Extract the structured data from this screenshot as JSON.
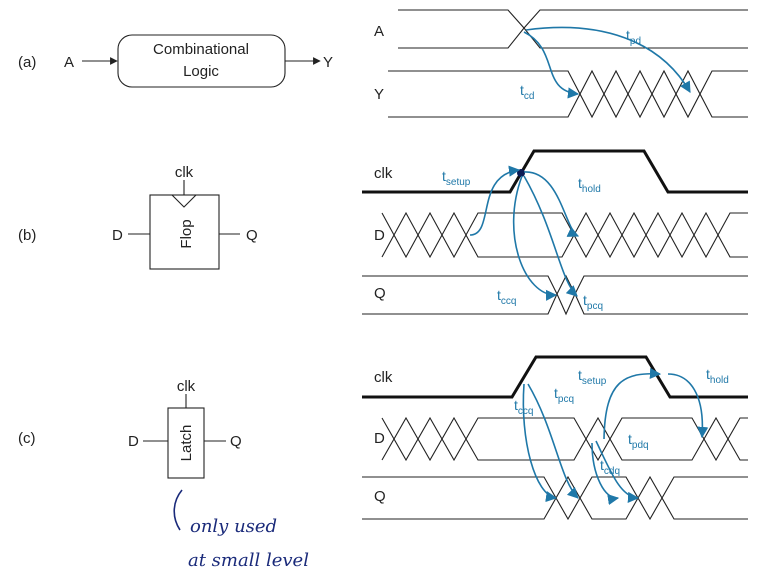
{
  "rows": {
    "a": {
      "label": "(a)",
      "block": {
        "line1": "Combinational",
        "line2": "Logic",
        "input": "A",
        "output": "Y"
      },
      "signals": [
        "A",
        "Y"
      ],
      "timing": [
        {
          "base": "t",
          "sub": "pd"
        },
        {
          "base": "t",
          "sub": "cd"
        }
      ]
    },
    "b": {
      "label": "(b)",
      "block": {
        "name": "Flop",
        "clock": "clk",
        "input": "D",
        "output": "Q"
      },
      "signals": [
        "clk",
        "D",
        "Q"
      ],
      "timing": [
        {
          "base": "t",
          "sub": "setup"
        },
        {
          "base": "t",
          "sub": "hold"
        },
        {
          "base": "t",
          "sub": "ccq"
        },
        {
          "base": "t",
          "sub": "pcq"
        }
      ]
    },
    "c": {
      "label": "(c)",
      "block": {
        "name": "Latch",
        "clock": "clk",
        "input": "D",
        "output": "Q"
      },
      "signals": [
        "clk",
        "D",
        "Q"
      ],
      "timing": [
        {
          "base": "t",
          "sub": "ccq"
        },
        {
          "base": "t",
          "sub": "pcq"
        },
        {
          "base": "t",
          "sub": "setup"
        },
        {
          "base": "t",
          "sub": "hold"
        },
        {
          "base": "t",
          "sub": "pdq"
        },
        {
          "base": "t",
          "sub": "cdq"
        }
      ]
    }
  },
  "annotation": {
    "line1": "only used",
    "line2": "at small level"
  },
  "colors": {
    "wire": "#222222",
    "timing": "#1f78a8",
    "handwriting": "#1a2a7a"
  }
}
